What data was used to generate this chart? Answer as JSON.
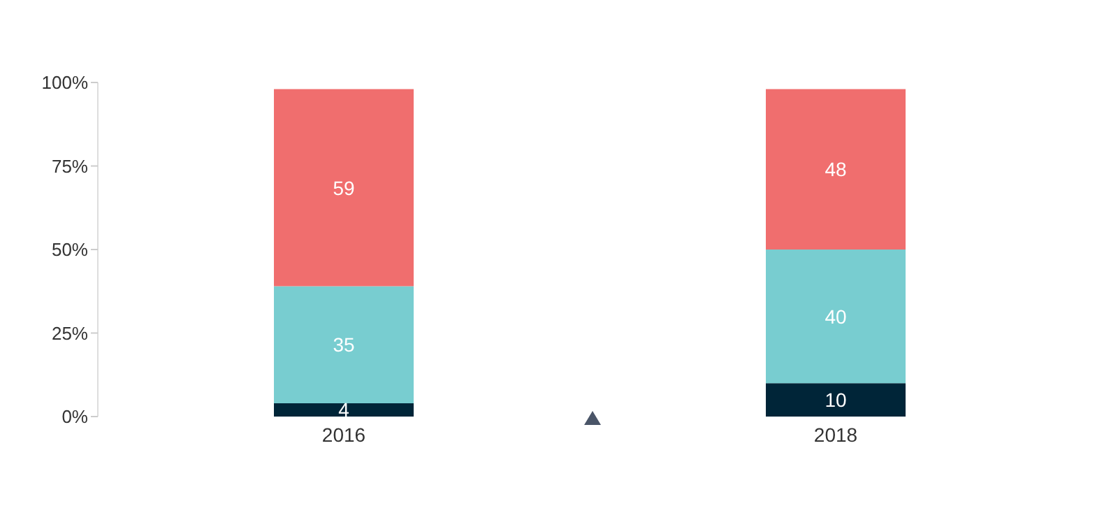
{
  "chart_data": {
    "type": "bar",
    "stacked": true,
    "categories": [
      "2016",
      "2018"
    ],
    "series": [
      {
        "color": "#002538",
        "values": [
          4,
          10
        ]
      },
      {
        "color": "#78cdd0",
        "values": [
          35,
          40
        ]
      },
      {
        "color": "#f06e6e",
        "values": [
          59,
          48
        ]
      }
    ],
    "ylim": [
      0,
      100
    ],
    "yticks": [
      {
        "value": 0,
        "label": "0%"
      },
      {
        "value": 25,
        "label": "25%"
      },
      {
        "value": 50,
        "label": "50%"
      },
      {
        "value": 75,
        "label": "75%"
      },
      {
        "value": 100,
        "label": "100%"
      }
    ],
    "data_labels": true,
    "grid": false,
    "legend": false
  }
}
